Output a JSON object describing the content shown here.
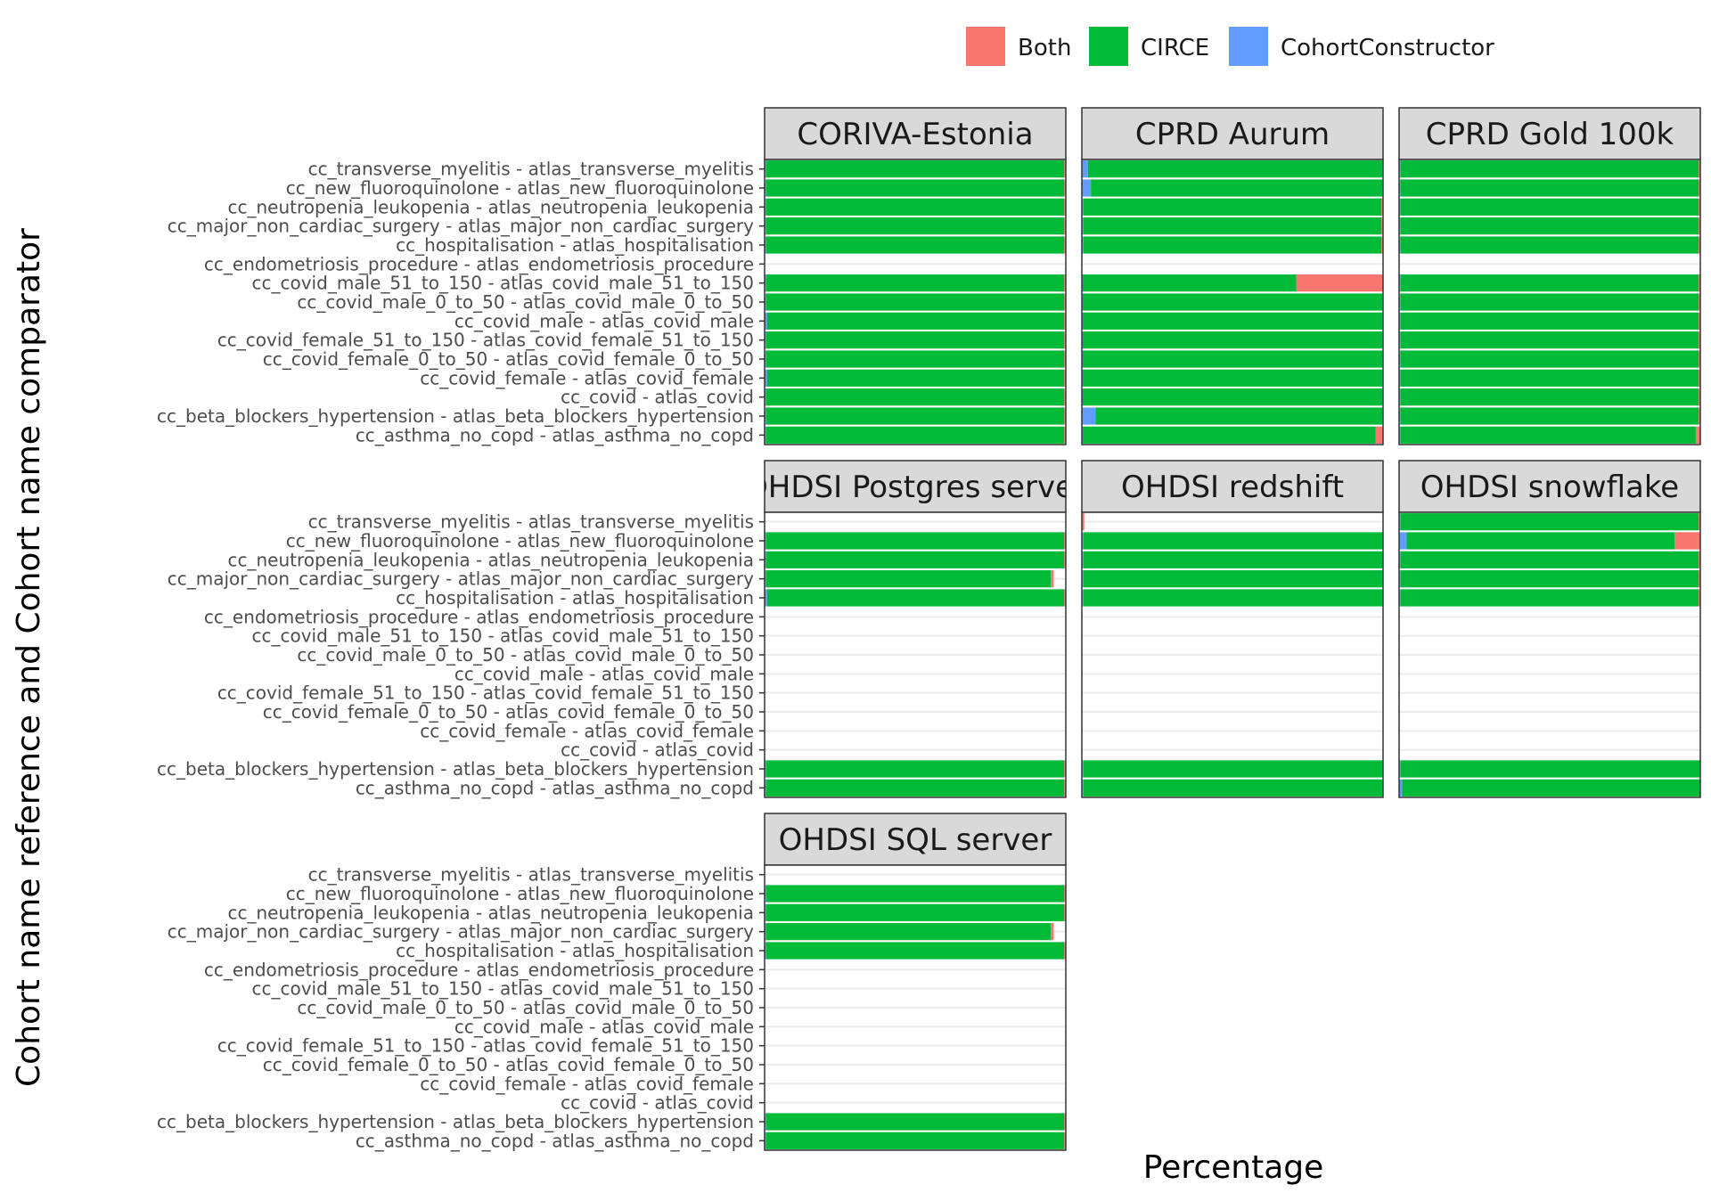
{
  "chart_data": {
    "type": "bar",
    "orientation": "horizontal",
    "stacked": true,
    "facet_layout": "wrap 3 columns",
    "xlabel": "Percentage",
    "ylabel": "Cohort name reference and Cohort name comparator",
    "xlim": [
      0,
      100
    ],
    "legend": {
      "position": "top",
      "items": [
        {
          "name": "Both",
          "color": "#F8766D"
        },
        {
          "name": "CIRCE",
          "color": "#00BA38"
        },
        {
          "name": "CohortConstructor",
          "color": "#619CFF"
        }
      ]
    },
    "categories": [
      "cc_transverse_myelitis - atlas_transverse_myelitis",
      "cc_new_fluoroquinolone - atlas_new_fluoroquinolone",
      "cc_neutropenia_leukopenia - atlas_neutropenia_leukopenia",
      "cc_major_non_cardiac_surgery - atlas_major_non_cardiac_surgery",
      "cc_hospitalisation - atlas_hospitalisation",
      "cc_endometriosis_procedure - atlas_endometriosis_procedure",
      "cc_covid_male_51_to_150 - atlas_covid_male_51_to_150",
      "cc_covid_male_0_to_50 - atlas_covid_male_0_to_50",
      "cc_covid_male - atlas_covid_male",
      "cc_covid_female_51_to_150 - atlas_covid_female_51_to_150",
      "cc_covid_female_0_to_50 - atlas_covid_female_0_to_50",
      "cc_covid_female - atlas_covid_female",
      "cc_covid - atlas_covid",
      "cc_beta_blockers_hypertension - atlas_beta_blockers_hypertension",
      "cc_asthma_no_copd - atlas_asthma_no_copd"
    ],
    "panels": [
      {
        "title": "CORIVA-Estonia",
        "values": [
          [
            0.5,
            99.0,
            0.5
          ],
          [
            0.5,
            99.0,
            0.5
          ],
          [
            0.5,
            99.0,
            0.5
          ],
          [
            0.5,
            99.0,
            0.5
          ],
          [
            0.5,
            99.0,
            0.5
          ],
          null,
          [
            0.5,
            99.0,
            0.5
          ],
          [
            0.5,
            99.0,
            0.5
          ],
          [
            0.8,
            98.7,
            0.5
          ],
          [
            0.5,
            99.0,
            0.5
          ],
          [
            0.5,
            99.0,
            0.5
          ],
          [
            0.8,
            98.7,
            0.5
          ],
          [
            0.5,
            99.0,
            0.5
          ],
          [
            0.5,
            99.0,
            0.5
          ],
          [
            0.5,
            99.0,
            0.5
          ]
        ]
      },
      {
        "title": "CPRD Aurum",
        "values": [
          [
            2.0,
            97.7,
            0.3
          ],
          [
            3.0,
            96.7,
            0.3
          ],
          [
            0.5,
            99.0,
            0.5
          ],
          [
            0.5,
            99.0,
            0.5
          ],
          [
            0.5,
            99.0,
            0.5
          ],
          null,
          [
            0.3,
            70.9,
            28.8
          ],
          [
            0.3,
            99.4,
            0.3
          ],
          [
            0.3,
            99.4,
            0.3
          ],
          [
            0.3,
            99.4,
            0.3
          ],
          [
            0.3,
            99.4,
            0.3
          ],
          [
            0.3,
            99.4,
            0.3
          ],
          [
            0.3,
            99.4,
            0.3
          ],
          [
            4.5,
            95.2,
            0.3
          ],
          [
            0.3,
            97.2,
            2.5
          ]
        ]
      },
      {
        "title": "CPRD Gold 100k",
        "values": [
          [
            0.5,
            99.0,
            0.5
          ],
          [
            0.5,
            99.0,
            0.5
          ],
          [
            0.5,
            99.0,
            0.5
          ],
          [
            0.5,
            99.0,
            0.5
          ],
          [
            0.5,
            99.0,
            0.5
          ],
          null,
          [
            0.5,
            99.0,
            0.5
          ],
          [
            0.5,
            99.0,
            0.5
          ],
          [
            0.5,
            99.0,
            0.5
          ],
          [
            0.5,
            99.0,
            0.5
          ],
          [
            0.5,
            99.0,
            0.5
          ],
          [
            0.5,
            99.0,
            0.5
          ],
          [
            0.5,
            99.0,
            0.5
          ],
          [
            0.5,
            99.0,
            0.5
          ],
          [
            0.5,
            98.0,
            1.5
          ]
        ]
      },
      {
        "title": "OHDSI Postgres server",
        "values": [
          null,
          [
            0.5,
            99.0,
            0.5
          ],
          [
            0.5,
            99.0,
            0.5
          ],
          [
            0.5,
            94.5,
            1.0
          ],
          [
            0.8,
            98.7,
            0.5
          ],
          null,
          null,
          null,
          null,
          null,
          null,
          null,
          null,
          [
            0.5,
            99.0,
            0.5
          ],
          [
            0.5,
            99.0,
            0.5
          ]
        ]
      },
      {
        "title": "OHDSI redshift",
        "values": [
          [
            0,
            0,
            0.8
          ],
          [
            0.5,
            99.5,
            0
          ],
          [
            0.5,
            99.5,
            0
          ],
          [
            0.5,
            99.5,
            0
          ],
          [
            0.5,
            99.5,
            0
          ],
          null,
          null,
          null,
          null,
          null,
          null,
          null,
          null,
          [
            0.5,
            99.5,
            0
          ],
          [
            0.5,
            99.5,
            0
          ]
        ]
      },
      {
        "title": "OHDSI snowflake",
        "values": [
          [
            0.5,
            99.0,
            0.5
          ],
          [
            2.5,
            89.0,
            8.5
          ],
          [
            0.5,
            99.0,
            0.5
          ],
          [
            0.5,
            99.0,
            0.5
          ],
          [
            0.5,
            99.0,
            0.5
          ],
          null,
          null,
          null,
          null,
          null,
          null,
          null,
          null,
          [
            0.5,
            99.5,
            0
          ],
          [
            1.0,
            99.0,
            0
          ]
        ]
      },
      {
        "title": "OHDSI SQL server",
        "values": [
          null,
          [
            0.5,
            99.0,
            0.5
          ],
          [
            0.5,
            99.0,
            0.5
          ],
          [
            0.5,
            94.5,
            1.0
          ],
          [
            0.5,
            99.0,
            0.5
          ],
          null,
          null,
          null,
          null,
          null,
          null,
          null,
          null,
          [
            0.5,
            99.0,
            0.5
          ],
          [
            0.5,
            99.0,
            0.5
          ]
        ]
      }
    ]
  }
}
